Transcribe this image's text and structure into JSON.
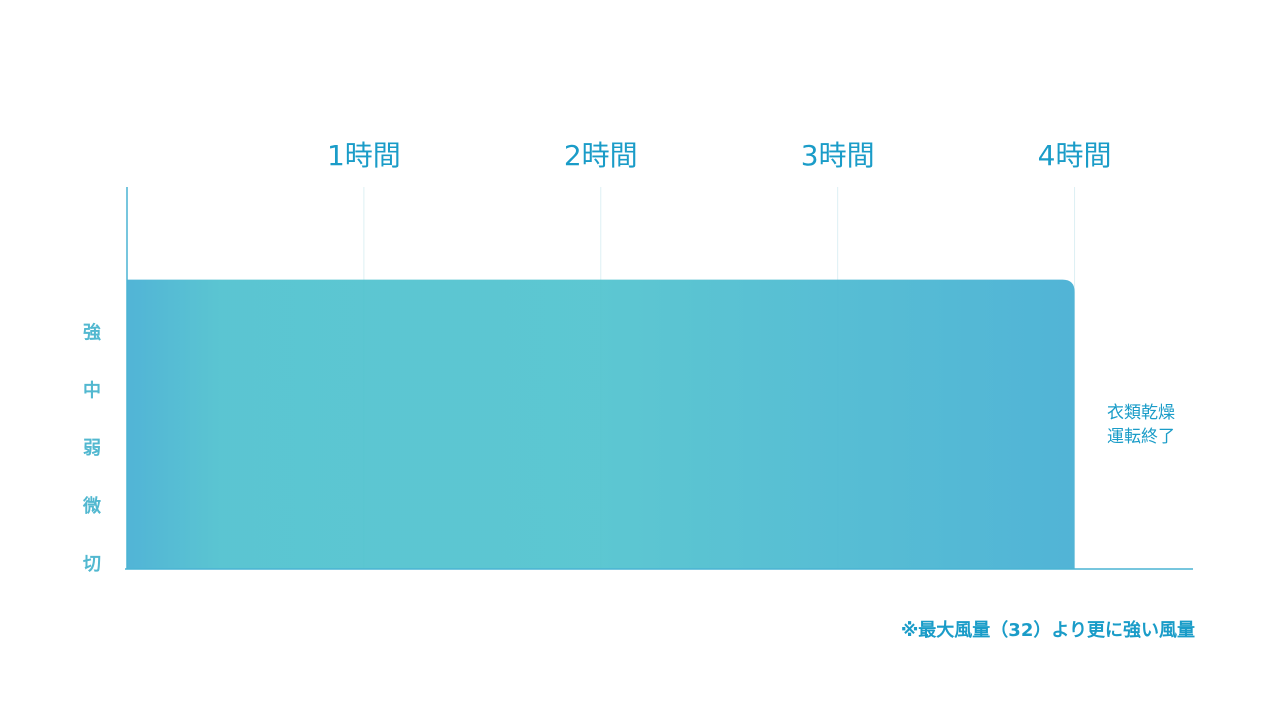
{
  "chart_data": {
    "type": "area",
    "x": [
      0,
      4
    ],
    "values": [
      5,
      5
    ],
    "color": "#52c0cf",
    "xlim": [
      0,
      4.5
    ],
    "xticks": [
      {
        "value": 1,
        "label": "1時間"
      },
      {
        "value": 2,
        "label": "2時間"
      },
      {
        "value": 3,
        "label": "3時間"
      },
      {
        "value": 4,
        "label": "4時間"
      }
    ],
    "ylim": [
      0,
      6.6
    ],
    "yticks": [
      {
        "value": 0,
        "label": "切"
      },
      {
        "value": 1,
        "label": "微"
      },
      {
        "value": 2,
        "label": "弱"
      },
      {
        "value": 3,
        "label": "中"
      },
      {
        "value": 4,
        "label": "強"
      }
    ],
    "grid": true,
    "annotation": [
      "衣類乾燥",
      "運転終了"
    ],
    "note": "※最大風量（32）より更に強い風量"
  }
}
